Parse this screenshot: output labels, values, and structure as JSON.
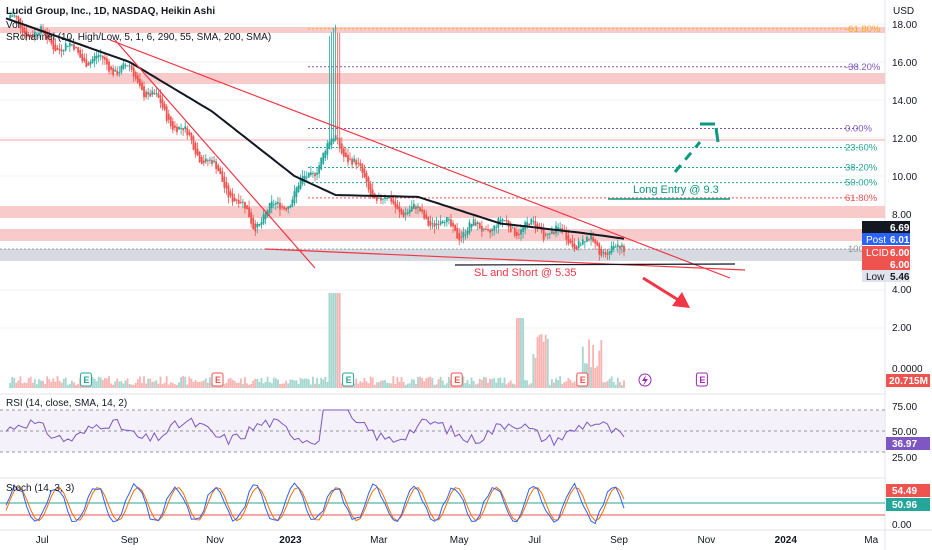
{
  "header": {
    "title": "Lucid Group, Inc., 1D, NASDAQ, Heikin Ashi",
    "indicator_vol": "Vol",
    "indicator_srchannel": "SRchannel (10, High/Low, 5, 1, 6, 290, 55, SMA, 200, SMA)",
    "currency": "USD"
  },
  "colors": {
    "bull": "#26a69a",
    "bear": "#ef5350",
    "sma": "#131722",
    "fib": "#ef5350",
    "fib_mid": "#26a69a",
    "fib_top": "#9598a1",
    "rsi": "#7e57c2",
    "stoch_k": "#2962ff",
    "stoch_d": "#ff6d00"
  },
  "price_axis": {
    "ticks": [
      "18.00",
      "16.00",
      "14.00",
      "12.00",
      "10.00",
      "8.00",
      "4.00",
      "2.00",
      "0.0000"
    ],
    "badges": [
      {
        "label": "",
        "value": "6.69",
        "color": "#131722"
      },
      {
        "label": "Post",
        "value": "6.01",
        "color": "#2962ff"
      },
      {
        "label": "LCID",
        "value": "6.00",
        "color": "#ef5350"
      },
      {
        "label": "",
        "value": "6.00",
        "color": "#ef5350"
      },
      {
        "label": "Low",
        "value": "5.46",
        "color": "#e0e3eb"
      }
    ],
    "volume_badge": "20.715M"
  },
  "rsi_panel": {
    "label": "RSI (14, close, SMA, 14, 2)",
    "ticks": [
      "75.00",
      "50.00",
      "25.00"
    ],
    "badge": "36.97"
  },
  "stoch_panel": {
    "label": "Stoch (14, 3, 3)",
    "ticks": [
      "0.00"
    ],
    "badge_k": "54.49",
    "badge_d": "50.96"
  },
  "time_axis": [
    "Jul",
    "Sep",
    "Nov",
    "2023",
    "Mar",
    "May",
    "Jul",
    "Sep",
    "Nov",
    "2024",
    "Ma"
  ],
  "fib_levels": [
    {
      "label": "-61.80%",
      "price": 17.75
    },
    {
      "label": "-38.20%",
      "price": 15.75
    },
    {
      "label": "0.00%",
      "price": 12.5
    },
    {
      "label": "23.60%",
      "price": 11.5
    },
    {
      "label": "38.20%",
      "price": 10.45
    },
    {
      "label": "50.00%",
      "price": 9.65
    },
    {
      "label": "61.80%",
      "price": 8.85
    },
    {
      "label": "100",
      "price": 6.15
    }
  ],
  "annotations": {
    "long_entry": "Long Entry @ 9.3",
    "sl_short": "SL and Short @ 5.35",
    "earnings_marker": "E"
  },
  "chart_data": {
    "type": "candlestick",
    "symbol": "LCID",
    "interval": "1D",
    "x_range": [
      "2022-06",
      "2024-03"
    ],
    "y_range": [
      0,
      18.8
    ],
    "series": [
      {
        "name": "Heikin Ashi",
        "approx_path": [
          {
            "x": "2022-06",
            "y": 18.3
          },
          {
            "x": "2022-07",
            "y": 17.2
          },
          {
            "x": "2022-08",
            "y": 16.2
          },
          {
            "x": "2022-09",
            "y": 15.5
          },
          {
            "x": "2022-10",
            "y": 13.0
          },
          {
            "x": "2022-11",
            "y": 10.5
          },
          {
            "x": "2022-12",
            "y": 7.5
          },
          {
            "x": "2023-01",
            "y": 9.0
          },
          {
            "x": "2023-02",
            "y": 12.0
          },
          {
            "x": "2023-03",
            "y": 8.8
          },
          {
            "x": "2023-04",
            "y": 8.0
          },
          {
            "x": "2023-05",
            "y": 7.1
          },
          {
            "x": "2023-06",
            "y": 7.4
          },
          {
            "x": "2023-07",
            "y": 7.2
          },
          {
            "x": "2023-08",
            "y": 6.5
          },
          {
            "x": "2023-09",
            "y": 6.0
          }
        ]
      },
      {
        "name": "SMA",
        "approx_path": [
          {
            "x": "2022-06",
            "y": 18.3
          },
          {
            "x": "2022-09",
            "y": 16.0
          },
          {
            "x": "2022-11",
            "y": 13.4
          },
          {
            "x": "2023-01",
            "y": 10.0
          },
          {
            "x": "2023-02",
            "y": 9.0
          },
          {
            "x": "2023-04",
            "y": 8.9
          },
          {
            "x": "2023-06",
            "y": 7.5
          },
          {
            "x": "2023-08",
            "y": 7.0
          },
          {
            "x": "2023-09",
            "y": 6.7
          }
        ]
      }
    ],
    "fib_range": {
      "from": 12.5,
      "to": 6.15
    }
  }
}
